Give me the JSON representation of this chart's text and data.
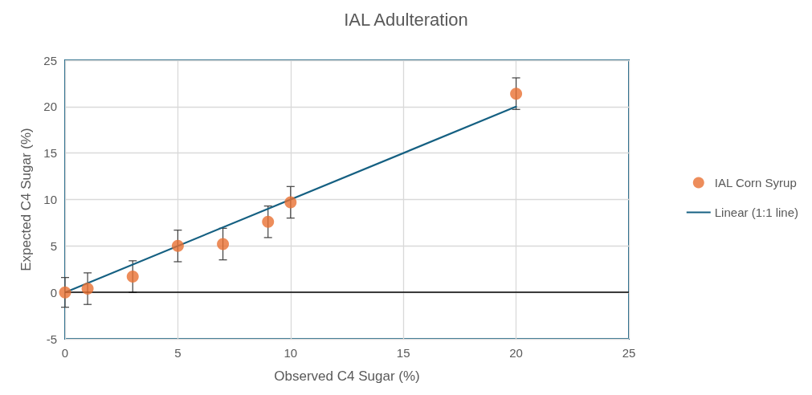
{
  "chart_data": {
    "type": "scatter",
    "title": "IAL Adulteration",
    "xlabel": "Observed C4 Sugar (%)",
    "ylabel": "Expected C4 Sugar (%)",
    "xlim": [
      0,
      25
    ],
    "xticks": [
      0,
      5,
      10,
      15,
      20,
      25
    ],
    "ylim": [
      -5,
      25
    ],
    "yticks": [
      -5,
      0,
      5,
      10,
      15,
      20,
      25
    ],
    "grid": true,
    "legend": "right",
    "series": [
      {
        "name": "IAL Corn Syrup",
        "color": "#e97132",
        "marker": "circle",
        "x": [
          0,
          1,
          3,
          5,
          7,
          9,
          10,
          20
        ],
        "values": [
          0,
          0.4,
          1.7,
          5.0,
          5.2,
          7.6,
          9.7,
          21.4
        ],
        "errors": [
          1.6,
          1.7,
          1.7,
          1.7,
          1.7,
          1.7,
          1.7,
          1.7
        ]
      },
      {
        "name": "Linear (1:1 line)",
        "type": "line",
        "color": "#156082",
        "marker": "none",
        "line_style": "solid",
        "x": [
          0,
          20
        ],
        "values": [
          0,
          20
        ]
      }
    ],
    "ref_lines": [
      {
        "axis": "y",
        "value": 0,
        "color": "#000000"
      }
    ]
  }
}
